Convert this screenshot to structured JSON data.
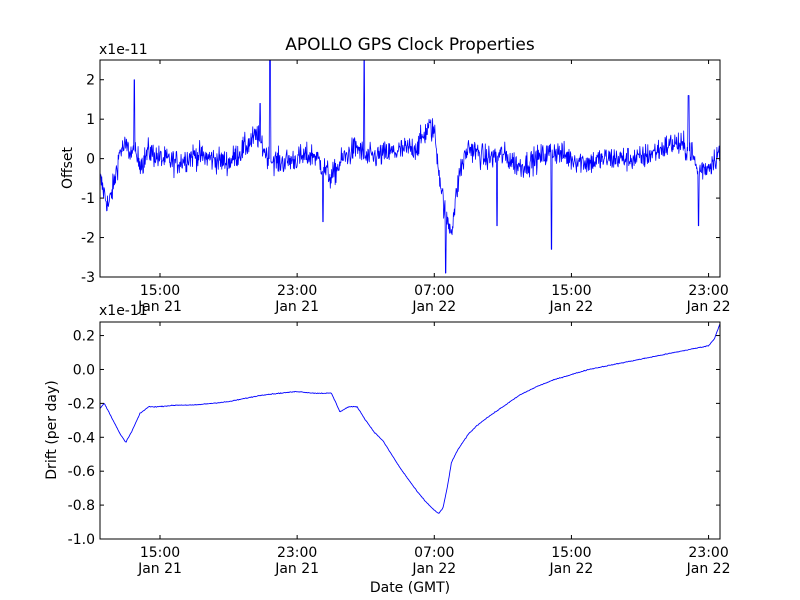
{
  "chart_data": [
    {
      "type": "line",
      "title": "APOLLO GPS Clock Properties",
      "xlabel": "",
      "ylabel": "Offset",
      "y_multiplier": "x1e-11",
      "ylim": [
        -3,
        2.5
      ],
      "yticks": [
        2,
        1,
        0,
        -1,
        -2,
        -3
      ],
      "ytick_labels": [
        "2",
        "1",
        "0",
        "-1",
        "-2",
        "-3"
      ],
      "xlim": [
        "Jan 21 11:30",
        "Jan 22 23:40"
      ],
      "xticks": [
        {
          "time": "15:00",
          "date": "Jan 21"
        },
        {
          "time": "23:00",
          "date": "Jan 21"
        },
        {
          "time": "07:00",
          "date": "Jan 22"
        },
        {
          "time": "15:00",
          "date": "Jan 22"
        },
        {
          "time": "23:00",
          "date": "Jan 22"
        }
      ],
      "grid": false,
      "series": [
        {
          "color": "#0000ff",
          "style": "noisy",
          "x": [
            "Jan 21 11:30",
            "Jan 21 11:50",
            "Jan 21 12:00",
            "Jan 21 12:20",
            "Jan 21 12:40",
            "Jan 21 13:00",
            "Jan 21 13:40",
            "Jan 21 14:00",
            "Jan 21 14:20",
            "Jan 21 15:00",
            "Jan 21 16:00",
            "Jan 21 17:00",
            "Jan 21 18:00",
            "Jan 21 19:00",
            "Jan 21 20:00",
            "Jan 21 20:40",
            "Jan 21 21:20",
            "Jan 21 22:00",
            "Jan 21 23:00",
            "Jan 22 00:00",
            "Jan 22 00:40",
            "Jan 22 01:00",
            "Jan 22 01:40",
            "Jan 22 02:30",
            "Jan 22 03:00",
            "Jan 22 04:00",
            "Jan 22 05:00",
            "Jan 22 06:00",
            "Jan 22 06:40",
            "Jan 22 07:00",
            "Jan 22 07:20",
            "Jan 22 07:40",
            "Jan 22 08:00",
            "Jan 22 08:30",
            "Jan 22 09:00",
            "Jan 22 10:00",
            "Jan 22 11:00",
            "Jan 22 12:00",
            "Jan 22 13:00",
            "Jan 22 14:00",
            "Jan 22 15:00",
            "Jan 22 16:00",
            "Jan 22 17:00",
            "Jan 22 18:00",
            "Jan 22 19:00",
            "Jan 22 20:00",
            "Jan 22 21:00",
            "Jan 22 22:00",
            "Jan 22 22:20",
            "Jan 22 23:00",
            "Jan 22 23:40"
          ],
          "values": [
            -0.5,
            -1.0,
            -1.2,
            -0.6,
            0.2,
            0.3,
            0.0,
            -0.1,
            0.2,
            0.0,
            -0.1,
            0.1,
            0.0,
            -0.1,
            0.3,
            0.6,
            0.0,
            -0.1,
            0.0,
            0.1,
            -0.3,
            -0.5,
            0.0,
            0.3,
            0.0,
            0.1,
            0.2,
            0.3,
            0.8,
            0.7,
            -0.5,
            -1.5,
            -1.8,
            -0.3,
            0.3,
            0.0,
            0.1,
            -0.2,
            0.0,
            0.2,
            0.0,
            -0.1,
            0.0,
            0.0,
            0.0,
            0.2,
            0.4,
            0.2,
            -0.3,
            -0.2,
            0.2
          ],
          "spikes": [
            {
              "x": "Jan 21 13:30",
              "value": 2.0
            },
            {
              "x": "Jan 21 20:50",
              "value": 1.4
            },
            {
              "x": "Jan 21 21:25",
              "value": 2.5
            },
            {
              "x": "Jan 22 00:30",
              "value": -1.6
            },
            {
              "x": "Jan 22 02:55",
              "value": 2.5
            },
            {
              "x": "Jan 22 07:40",
              "value": -2.9
            },
            {
              "x": "Jan 22 10:40",
              "value": -1.7
            },
            {
              "x": "Jan 22 13:50",
              "value": -2.3
            },
            {
              "x": "Jan 22 21:50",
              "value": 1.6
            },
            {
              "x": "Jan 22 22:25",
              "value": -1.7
            }
          ]
        }
      ]
    },
    {
      "type": "line",
      "title": "",
      "xlabel": "Date (GMT)",
      "ylabel": "Drift (per day)",
      "y_multiplier": "x1e-11",
      "ylim": [
        -1.0,
        0.28
      ],
      "yticks": [
        0.2,
        0.0,
        -0.2,
        -0.4,
        -0.6,
        -0.8,
        -1.0
      ],
      "ytick_labels": [
        "0.2",
        "0.0",
        "-0.2",
        "-0.4",
        "-0.6",
        "-0.8",
        "-1.0"
      ],
      "xlim": [
        "Jan 21 11:30",
        "Jan 22 23:40"
      ],
      "xticks": [
        {
          "time": "15:00",
          "date": "Jan 21"
        },
        {
          "time": "23:00",
          "date": "Jan 21"
        },
        {
          "time": "07:00",
          "date": "Jan 22"
        },
        {
          "time": "15:00",
          "date": "Jan 22"
        },
        {
          "time": "23:00",
          "date": "Jan 22"
        }
      ],
      "grid": false,
      "series": [
        {
          "color": "#0000ff",
          "style": "smooth",
          "x": [
            "Jan 21 11:30",
            "Jan 21 11:45",
            "Jan 21 12:10",
            "Jan 21 12:40",
            "Jan 21 13:00",
            "Jan 21 13:20",
            "Jan 21 13:50",
            "Jan 21 14:20",
            "Jan 21 14:50",
            "Jan 21 16:00",
            "Jan 21 17:00",
            "Jan 21 18:00",
            "Jan 21 19:00",
            "Jan 21 20:00",
            "Jan 21 21:00",
            "Jan 21 22:00",
            "Jan 21 23:00",
            "Jan 22 00:00",
            "Jan 22 00:30",
            "Jan 22 01:00",
            "Jan 22 01:30",
            "Jan 22 02:00",
            "Jan 22 02:30",
            "Jan 22 03:00",
            "Jan 22 03:30",
            "Jan 22 04:00",
            "Jan 22 04:30",
            "Jan 22 05:00",
            "Jan 22 05:30",
            "Jan 22 06:00",
            "Jan 22 06:30",
            "Jan 22 07:00",
            "Jan 22 07:15",
            "Jan 22 07:30",
            "Jan 22 07:45",
            "Jan 22 08:00",
            "Jan 22 08:20",
            "Jan 22 08:40",
            "Jan 22 09:00",
            "Jan 22 09:30",
            "Jan 22 10:00",
            "Jan 22 11:00",
            "Jan 22 12:00",
            "Jan 22 13:00",
            "Jan 22 14:00",
            "Jan 22 15:00",
            "Jan 22 16:00",
            "Jan 22 17:00",
            "Jan 22 18:00",
            "Jan 22 19:00",
            "Jan 22 20:00",
            "Jan 22 21:00",
            "Jan 22 22:00",
            "Jan 22 23:00",
            "Jan 22 23:20",
            "Jan 22 23:40"
          ],
          "values": [
            -0.23,
            -0.2,
            -0.28,
            -0.38,
            -0.43,
            -0.37,
            -0.26,
            -0.22,
            -0.22,
            -0.21,
            -0.21,
            -0.2,
            -0.19,
            -0.17,
            -0.15,
            -0.14,
            -0.13,
            -0.14,
            -0.14,
            -0.14,
            -0.25,
            -0.22,
            -0.22,
            -0.3,
            -0.37,
            -0.42,
            -0.5,
            -0.58,
            -0.65,
            -0.72,
            -0.78,
            -0.83,
            -0.85,
            -0.82,
            -0.7,
            -0.55,
            -0.48,
            -0.43,
            -0.38,
            -0.33,
            -0.29,
            -0.22,
            -0.15,
            -0.1,
            -0.06,
            -0.03,
            0.0,
            0.02,
            0.04,
            0.06,
            0.08,
            0.1,
            0.12,
            0.14,
            0.18,
            0.27
          ]
        }
      ]
    }
  ]
}
